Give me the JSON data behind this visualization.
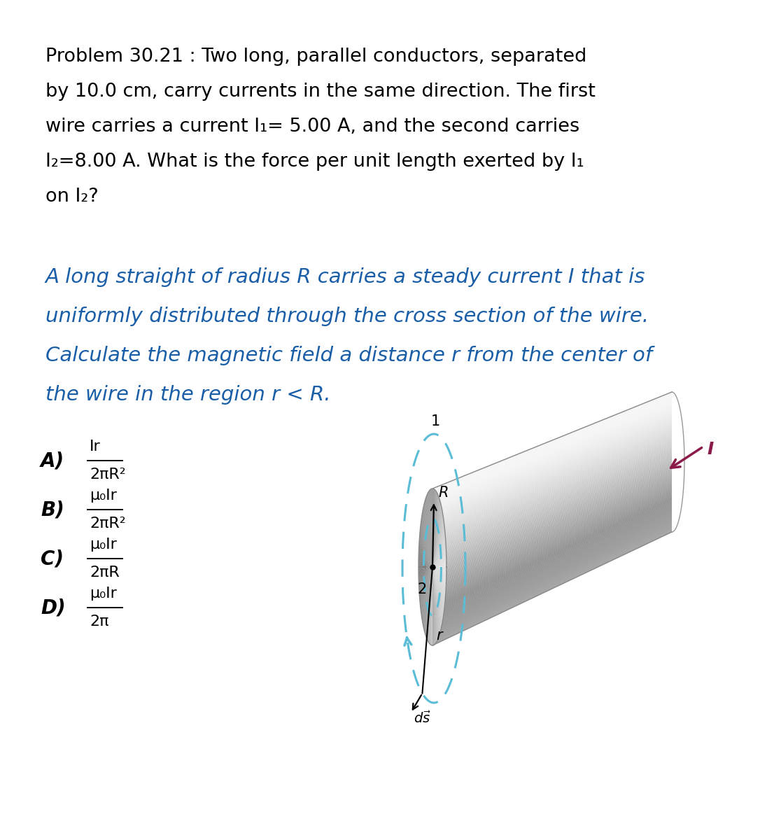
{
  "bg_color": "#ffffff",
  "prob_line1": "Problem 30.21 : Two long, parallel conductors, separated",
  "prob_line2": "by 10.0 cm, carry currents in the same direction. The first",
  "prob_line3": "wire carries a current I₁= 5.00 A, and the second carries",
  "prob_line4": "I₂=8.00 A. What is the force per unit length exerted by I₁",
  "prob_line5": "on I₂?",
  "blue_line1": "A long straight of radius R carries a steady current I that is",
  "blue_line2": "uniformly distributed through the cross section of the wire.",
  "blue_line3": "Calculate the magnetic field a distance r from the center of",
  "blue_line4": "the wire in the region r < R.",
  "opt_labels": [
    "A)",
    "B)",
    "C)",
    "D)"
  ],
  "opt_tops": [
    "Ir",
    "μ₀Ir",
    "μ₀Ir",
    "μ₀Ir"
  ],
  "opt_bots": [
    "2πR²",
    "2πR²",
    "2πR",
    "2π"
  ],
  "black": "#000000",
  "blue": "#1a5ea8",
  "cyan": "#5bbcd6",
  "purple": "#8b1a4a",
  "gray_light": "#d4d4d4",
  "gray_mid": "#b0b0b0",
  "gray_dark": "#909090"
}
